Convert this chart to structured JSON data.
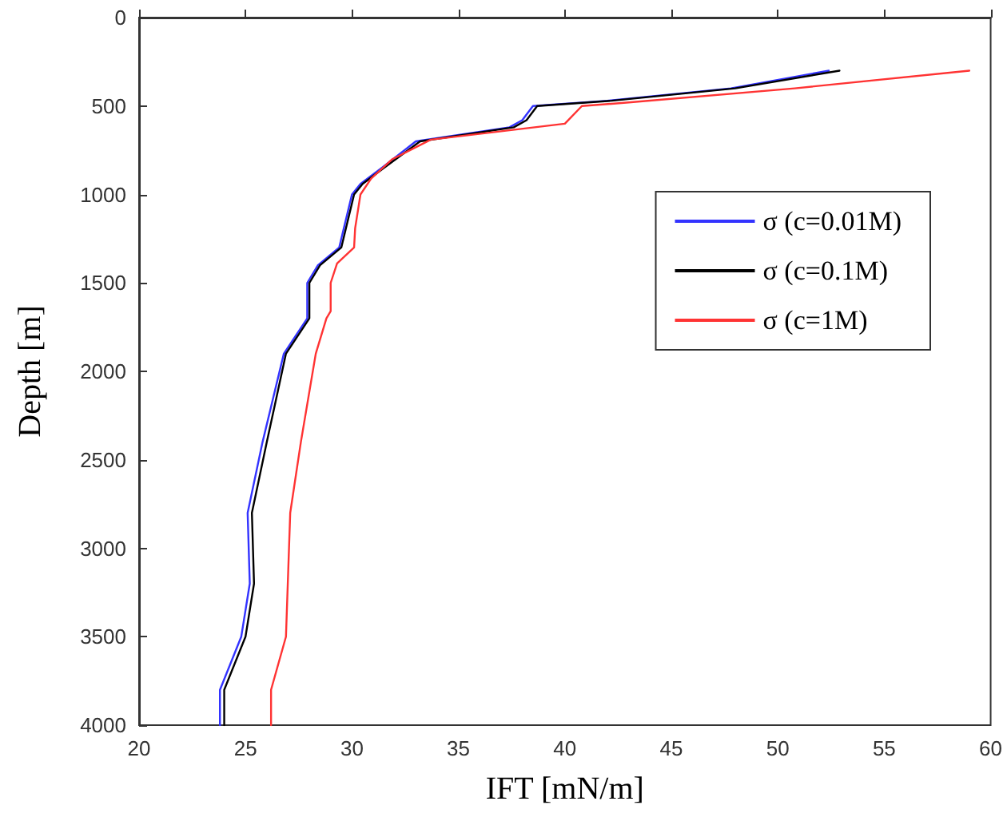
{
  "chart_data": {
    "type": "line",
    "xlabel": "IFT [mN/m]",
    "ylabel": "Depth [m]",
    "xlim": [
      20,
      60
    ],
    "xticks": [
      20,
      25,
      30,
      35,
      40,
      45,
      50,
      55,
      60
    ],
    "ylim": [
      4000,
      0
    ],
    "yticks": [
      0,
      500,
      1000,
      1500,
      2000,
      2500,
      3000,
      3500,
      4000
    ],
    "grid": false,
    "legend": "top right",
    "marker": "none",
    "line_style": "solid",
    "series": [
      {
        "name": "σ (c=0.01M)",
        "color": "#3333ff",
        "x": [
          52.4,
          47.8,
          42,
          38.5,
          38,
          37.4,
          33,
          31.4,
          30.4,
          30,
          29.6,
          29.4,
          28.4,
          27.9,
          27.9,
          26.8,
          25.8,
          25.1,
          25.2,
          24.8,
          23.8,
          23.8
        ],
        "values": [
          300,
          400,
          470,
          500,
          580,
          620,
          700,
          850,
          940,
          1000,
          1200,
          1300,
          1400,
          1500,
          1700,
          1900,
          2400,
          2800,
          3200,
          3500,
          3800,
          4000
        ]
      },
      {
        "name": "σ (c=0.1M)",
        "color": "#000000",
        "x": [
          52.9,
          48,
          42.2,
          38.7,
          38.2,
          37.6,
          33.2,
          31.5,
          30.5,
          30.1,
          29.7,
          29.5,
          28.5,
          28,
          28,
          26.9,
          26,
          25.3,
          25.4,
          25,
          24,
          24
        ],
        "values": [
          300,
          400,
          470,
          500,
          580,
          620,
          700,
          850,
          940,
          1000,
          1200,
          1300,
          1400,
          1500,
          1700,
          1900,
          2400,
          2800,
          3200,
          3500,
          3800,
          4000
        ]
      },
      {
        "name": "σ (c=1M)",
        "color": "#ff3333",
        "x": [
          59,
          50.8,
          43,
          40.8,
          40,
          33.7,
          31.9,
          30.9,
          30.4,
          30.15,
          30.1,
          29.3,
          29,
          29,
          28.8,
          28.3,
          27.6,
          27.1,
          26.9,
          26.2,
          26.2
        ],
        "values": [
          300,
          400,
          480,
          500,
          600,
          690,
          800,
          910,
          1000,
          1190,
          1300,
          1390,
          1500,
          1660,
          1700,
          1900,
          2400,
          2800,
          3500,
          3800,
          4000
        ]
      }
    ]
  }
}
